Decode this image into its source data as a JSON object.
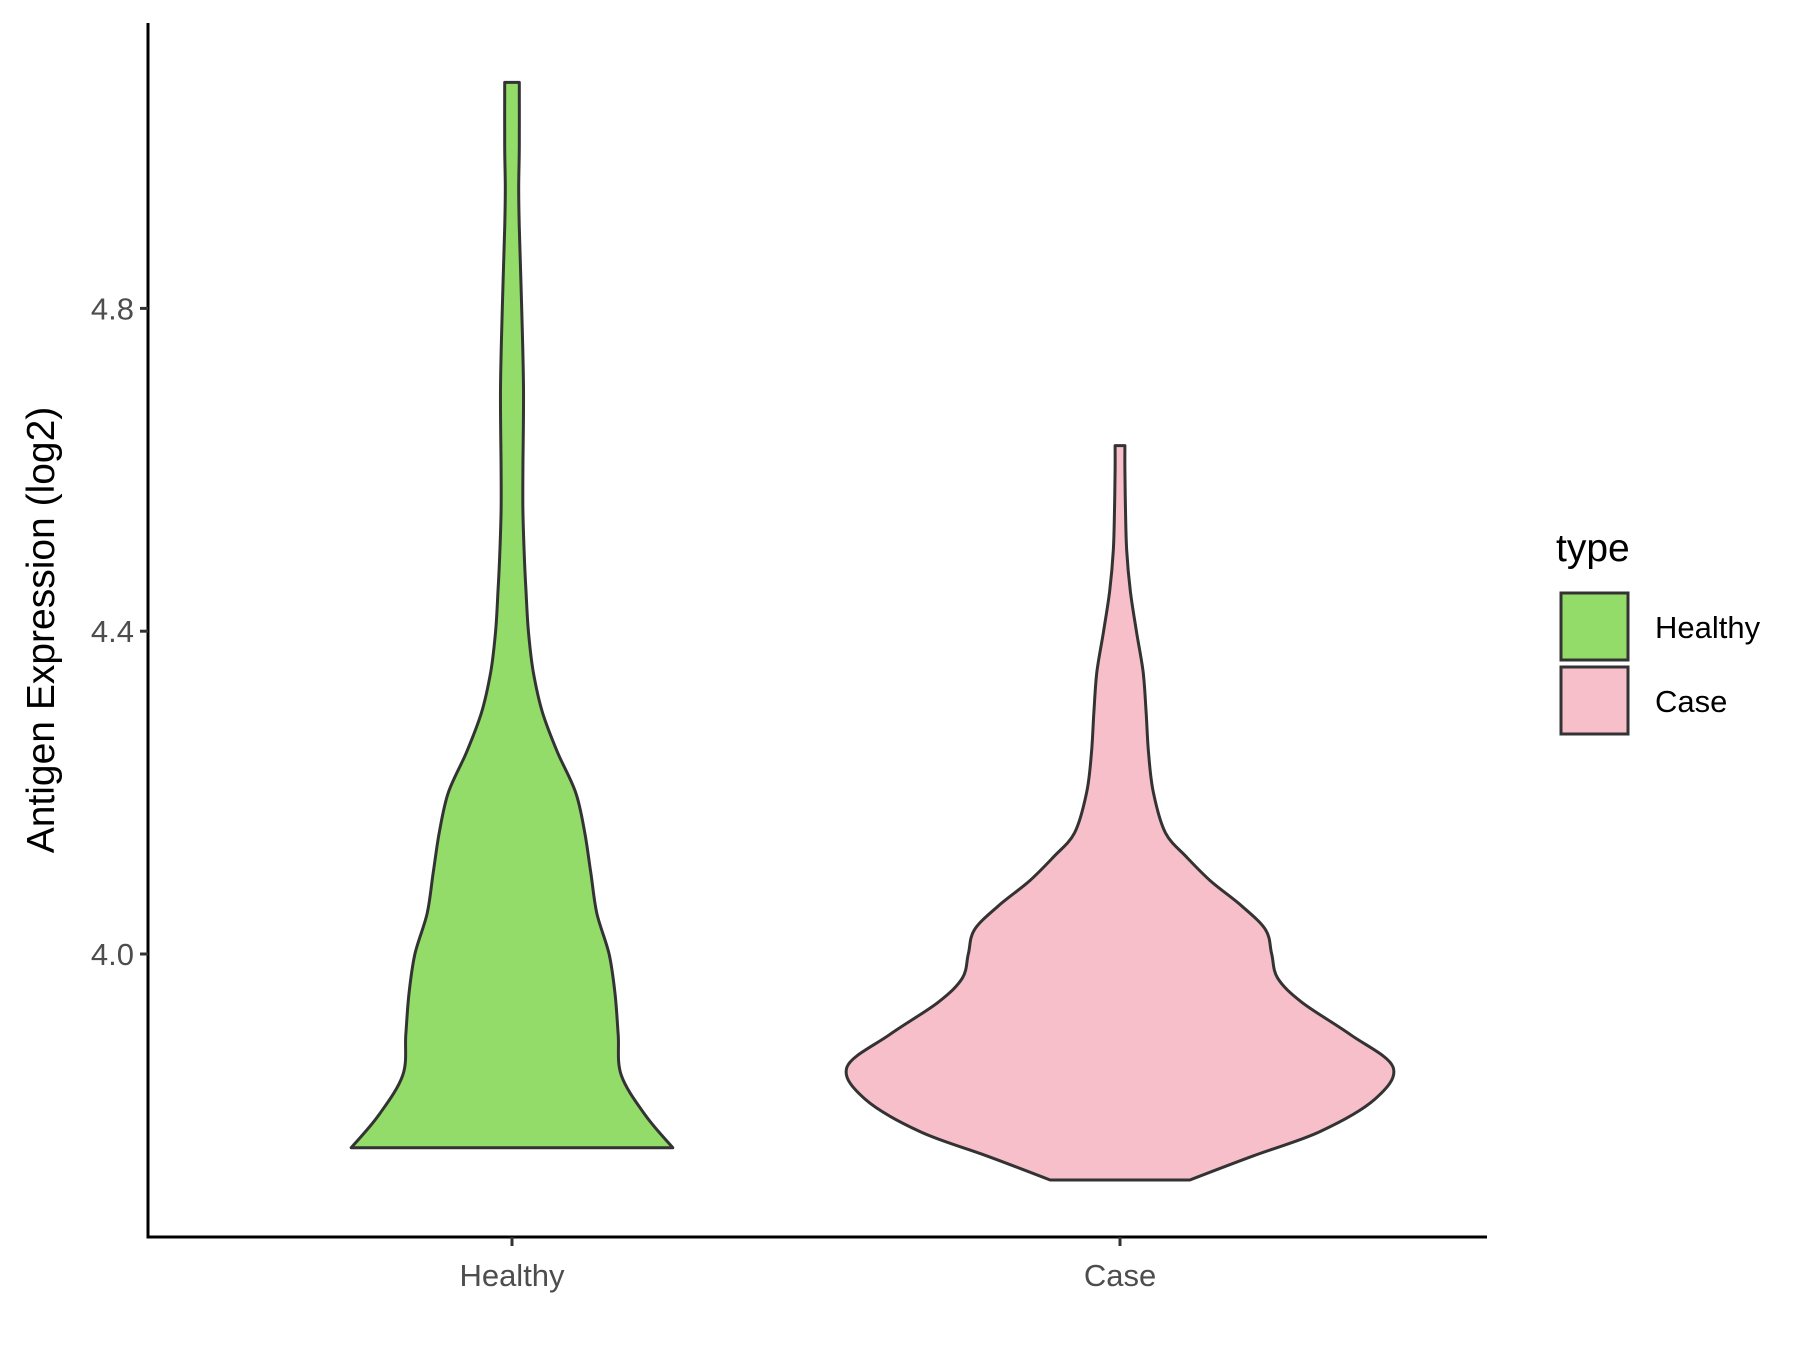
{
  "chart_data": {
    "type": "violin",
    "ylabel": "Antigen Expression (log2)",
    "xlabel": "",
    "categories": [
      "Healthy",
      "Case"
    ],
    "y_ticks": [
      "4.0",
      "4.4",
      "4.8"
    ],
    "ylim": [
      3.66,
      5.16
    ],
    "legend": {
      "title": "type",
      "position": "right",
      "entries": [
        {
          "label": "Healthy",
          "color": "#93dc6a"
        },
        {
          "label": "Case",
          "color": "#f7bfca"
        }
      ]
    },
    "grid": false,
    "series": [
      {
        "name": "Healthy",
        "color": "#93dc6a",
        "min": 3.76,
        "max": 5.08,
        "density": [
          [
            3.76,
            0.265
          ],
          [
            3.8,
            0.22
          ],
          [
            3.85,
            0.18
          ],
          [
            3.9,
            0.175
          ],
          [
            3.95,
            0.17
          ],
          [
            4.0,
            0.16
          ],
          [
            4.05,
            0.14
          ],
          [
            4.1,
            0.13
          ],
          [
            4.15,
            0.12
          ],
          [
            4.2,
            0.105
          ],
          [
            4.25,
            0.075
          ],
          [
            4.3,
            0.05
          ],
          [
            4.35,
            0.035
          ],
          [
            4.4,
            0.027
          ],
          [
            4.45,
            0.023
          ],
          [
            4.5,
            0.02
          ],
          [
            4.55,
            0.018
          ],
          [
            4.6,
            0.018
          ],
          [
            4.7,
            0.019
          ],
          [
            4.8,
            0.016
          ],
          [
            4.9,
            0.012
          ],
          [
            4.95,
            0.011
          ],
          [
            5.0,
            0.012
          ],
          [
            5.08,
            0.012
          ]
        ]
      },
      {
        "name": "Case",
        "color": "#f7bfca",
        "min": 3.72,
        "max": 4.63,
        "density": [
          [
            3.72,
            0.115
          ],
          [
            3.75,
            0.22
          ],
          [
            3.78,
            0.33
          ],
          [
            3.82,
            0.42
          ],
          [
            3.86,
            0.45
          ],
          [
            3.9,
            0.38
          ],
          [
            3.94,
            0.3
          ],
          [
            3.97,
            0.26
          ],
          [
            4.0,
            0.25
          ],
          [
            4.03,
            0.24
          ],
          [
            4.06,
            0.2
          ],
          [
            4.09,
            0.15
          ],
          [
            4.12,
            0.11
          ],
          [
            4.15,
            0.075
          ],
          [
            4.2,
            0.055
          ],
          [
            4.25,
            0.047
          ],
          [
            4.3,
            0.043
          ],
          [
            4.35,
            0.038
          ],
          [
            4.4,
            0.027
          ],
          [
            4.45,
            0.017
          ],
          [
            4.5,
            0.011
          ],
          [
            4.55,
            0.009
          ],
          [
            4.6,
            0.008
          ],
          [
            4.63,
            0.008
          ]
        ]
      }
    ]
  }
}
